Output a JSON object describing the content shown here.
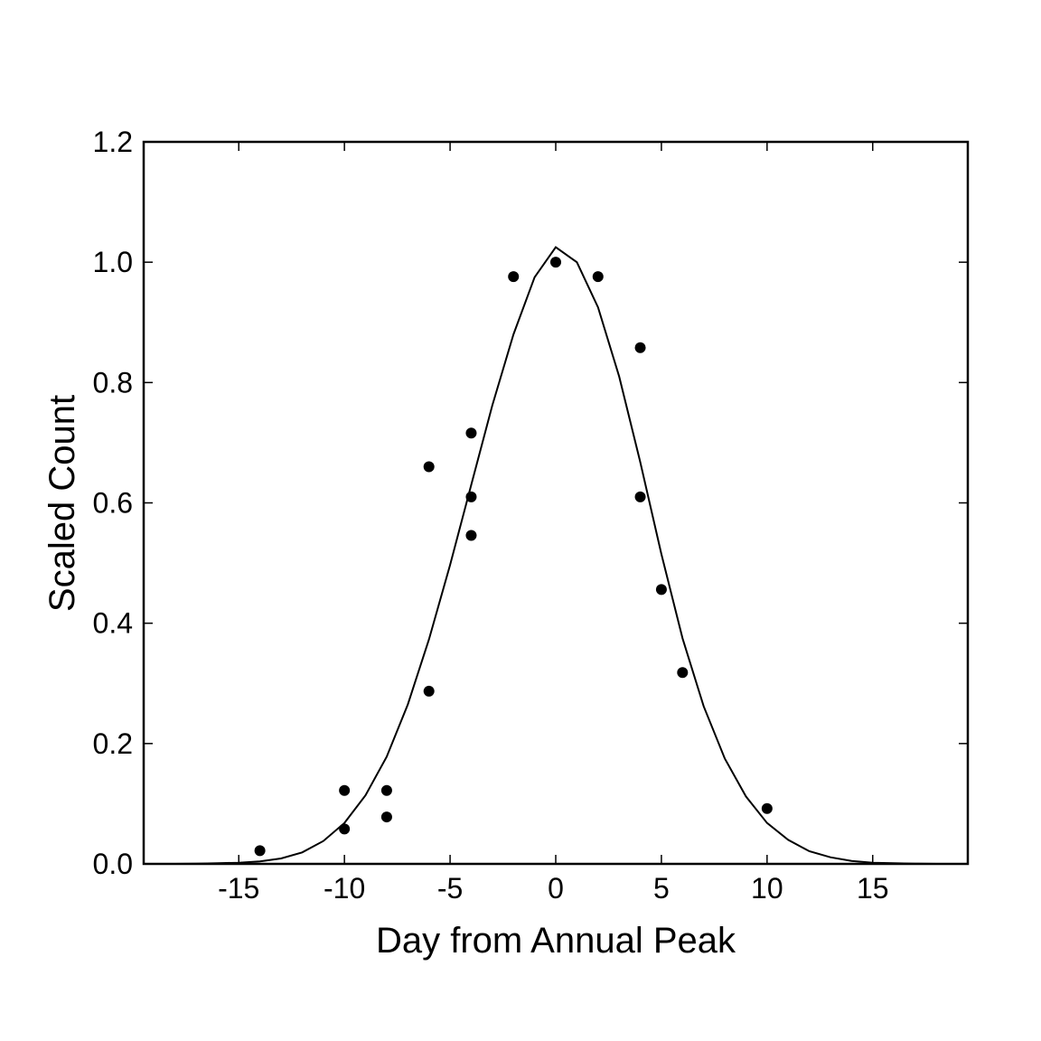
{
  "chart_data": {
    "type": "scatter",
    "title": "",
    "xlabel": "Day from Annual Peak",
    "ylabel": "Scaled Count",
    "xlim": [
      -19.5,
      19.5
    ],
    "ylim": [
      0,
      1.2
    ],
    "x_ticks": [
      -15,
      -10,
      -5,
      0,
      5,
      10,
      15
    ],
    "x_tick_labels": [
      "-15",
      "-10",
      "-5",
      "0",
      "5",
      "10",
      "15"
    ],
    "y_ticks": [
      0.0,
      0.2,
      0.4,
      0.6,
      0.8,
      1.0,
      1.2
    ],
    "y_tick_labels": [
      "0.0",
      "0.2",
      "0.4",
      "0.6",
      "0.8",
      "1.0",
      "1.2"
    ],
    "grid": false,
    "legend": "none",
    "points": [
      {
        "x": -14,
        "y": 0.022
      },
      {
        "x": -10,
        "y": 0.122
      },
      {
        "x": -10,
        "y": 0.058
      },
      {
        "x": -8,
        "y": 0.122
      },
      {
        "x": -8,
        "y": 0.078
      },
      {
        "x": -6,
        "y": 0.66
      },
      {
        "x": -6,
        "y": 0.287
      },
      {
        "x": -4,
        "y": 0.716
      },
      {
        "x": -4,
        "y": 0.61
      },
      {
        "x": -4,
        "y": 0.546
      },
      {
        "x": -2,
        "y": 0.976
      },
      {
        "x": 0,
        "y": 1.0
      },
      {
        "x": 2,
        "y": 0.976
      },
      {
        "x": 4,
        "y": 0.858
      },
      {
        "x": 4,
        "y": 0.61
      },
      {
        "x": 5,
        "y": 0.456
      },
      {
        "x": 6,
        "y": 0.318
      },
      {
        "x": 10,
        "y": 0.092
      }
    ],
    "fit_curve": {
      "type": "line",
      "x": [
        -19,
        -18,
        -17,
        -16,
        -15,
        -14,
        -13,
        -12,
        -11,
        -10,
        -9,
        -8,
        -7,
        -6,
        -5,
        -4,
        -3,
        -2,
        -1,
        0,
        1,
        2,
        3,
        4,
        5,
        6,
        7,
        8,
        9,
        10,
        11,
        12,
        13,
        14,
        15,
        16,
        17,
        18,
        19
      ],
      "y": [
        0.0,
        0.0,
        0.0005,
        0.001,
        0.002,
        0.004,
        0.009,
        0.019,
        0.038,
        0.068,
        0.114,
        0.178,
        0.265,
        0.373,
        0.497,
        0.63,
        0.762,
        0.88,
        0.975,
        1.025,
        1.0,
        0.925,
        0.81,
        0.668,
        0.515,
        0.375,
        0.262,
        0.175,
        0.112,
        0.068,
        0.04,
        0.021,
        0.011,
        0.005,
        0.002,
        0.001,
        0.0005,
        0.0,
        0.0
      ]
    },
    "colors": {
      "points": "#000000",
      "line": "#000000",
      "axes": "#000000"
    }
  }
}
